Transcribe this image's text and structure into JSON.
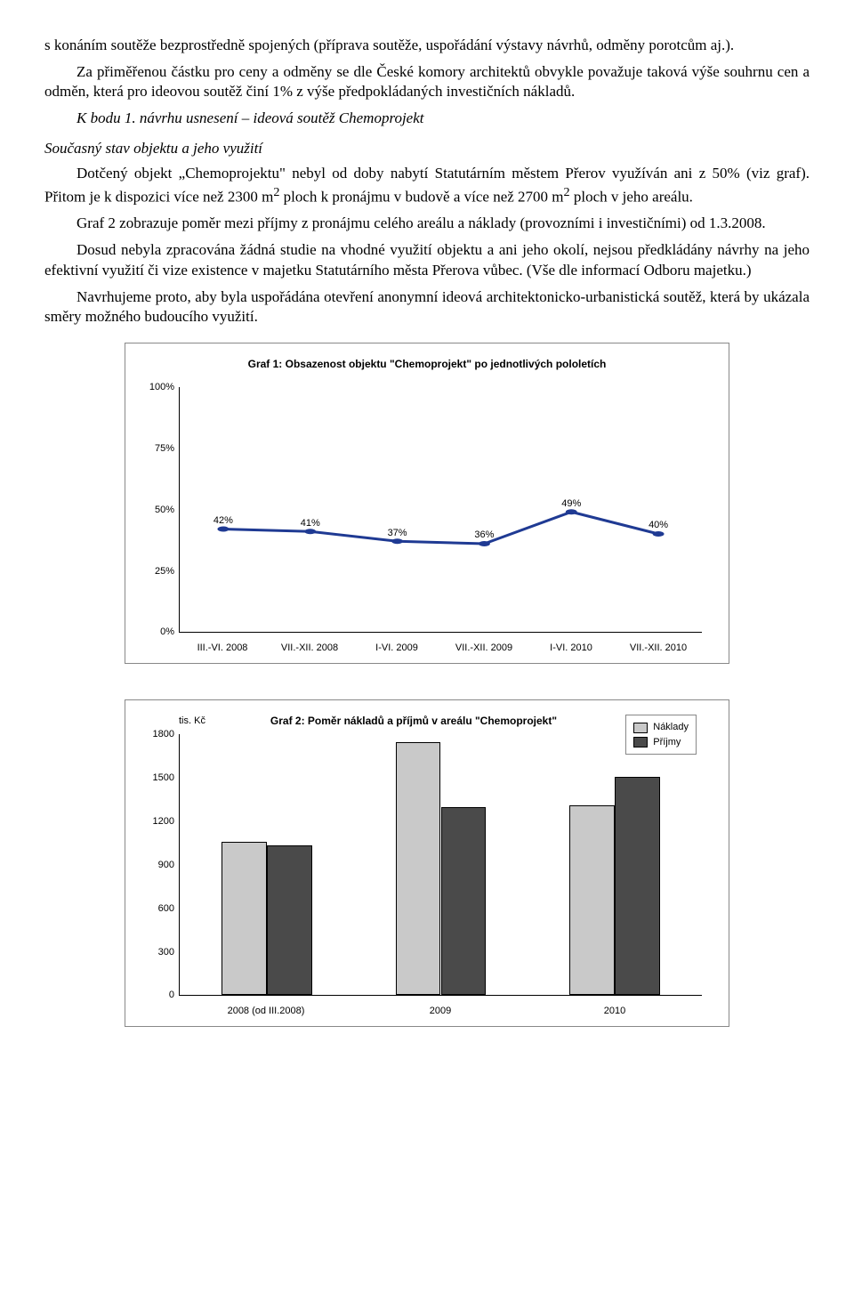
{
  "paragraphs": {
    "p1": "s konáním soutěže bezprostředně spojených (příprava soutěže, uspořádání výstavy návrhů, odměny porotcům aj.).",
    "p2": "Za přiměřenou částku pro ceny a odměny se dle České komory architektů obvykle považuje taková výše souhrnu cen a odměn, která pro ideovou soutěž činí 1% z výše předpokládaných investičních nákladů.",
    "kbodu": "K bodu 1. návrhu usnesení – ideová soutěž Chemoprojekt",
    "soucasny": "Současný stav objektu a jeho využití",
    "p3a": "Dotčený objekt „Chemoprojektu\" nebyl od doby nabytí Statutárním městem Přerov využíván ani z 50% (viz graf). Přitom je k dispozici více než 2300 m",
    "p3b": " ploch k pronájmu v budově a více než 2700 m",
    "p3c": " ploch v jeho areálu.",
    "p4": "Graf 2 zobrazuje poměr mezi příjmy z pronájmu celého areálu a náklady (provozními i investičními) od 1.3.2008.",
    "p5": "Dosud nebyla zpracována žádná studie na vhodné využití objektu a ani jeho okolí, nejsou předkládány návrhy na jeho efektivní využití či vize existence v majetku Statutárního města Přerova vůbec. (Vše dle informací Odboru majetku.)",
    "p6": "Navrhujeme proto, aby byla uspořádána otevření anonymní ideová architektonicko-urbanistická soutěž, která by ukázala směry možného budoucího využití.",
    "sup2": "2"
  },
  "chart1": {
    "type": "line",
    "title": "Graf 1: Obsazenost objektu \"Chemoprojekt\" po jednotlivých pololetích",
    "categories": [
      "III.-VI. 2008",
      "VII.-XII. 2008",
      "I-VI. 2009",
      "VII.-XII. 2009",
      "I-VI. 2010",
      "VII.-XII. 2010"
    ],
    "values": [
      42,
      41,
      37,
      36,
      49,
      40
    ],
    "value_labels": [
      "42%",
      "41%",
      "37%",
      "36%",
      "49%",
      "40%"
    ],
    "ylim": [
      0,
      100
    ],
    "ytick_step": 25,
    "ytick_labels": [
      "0%",
      "25%",
      "50%",
      "75%",
      "100%"
    ],
    "line_color": "#1f3a93",
    "line_width": 3,
    "marker_color": "#1f3a93",
    "marker_size": 5,
    "background_color": "#ffffff",
    "title_fontsize": 12,
    "label_fontsize": 11
  },
  "chart2": {
    "type": "bar",
    "title": "Graf 2: Poměr nákladů a příjmů v areálu \"Chemoprojekt\"",
    "y_unit": "tis. Kč",
    "categories": [
      "2008 (od III.2008)",
      "2009",
      "2010"
    ],
    "series": [
      {
        "name": "Náklady",
        "color": "#c9c9c9",
        "values": [
          1060,
          1750,
          1310
        ]
      },
      {
        "name": "Příjmy",
        "color": "#4a4a4a",
        "values": [
          1035,
          1300,
          1510
        ]
      }
    ],
    "ylim": [
      0,
      1800
    ],
    "ytick_step": 300,
    "ytick_labels": [
      "0",
      "300",
      "600",
      "900",
      "1200",
      "1500",
      "1800"
    ],
    "bar_border": "#000000",
    "background_color": "#ffffff",
    "title_fontsize": 12,
    "label_fontsize": 11,
    "bar_group_width": 0.52,
    "legend_position": "top-right"
  }
}
